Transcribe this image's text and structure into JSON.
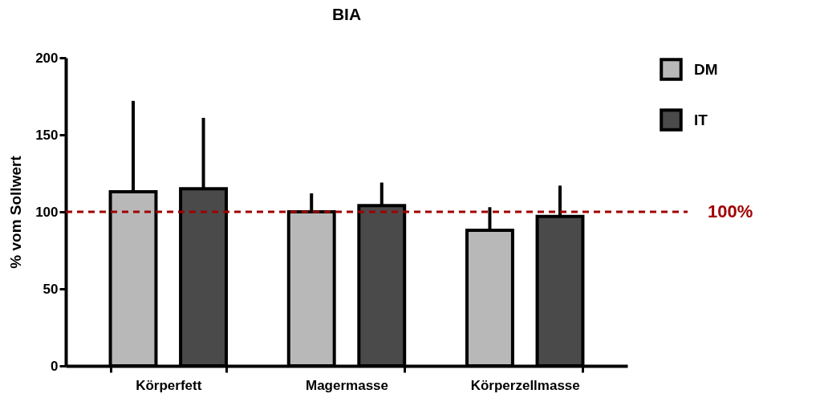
{
  "chart_data": {
    "type": "bar",
    "title": "BIA",
    "ylabel": "% vom Sollwert",
    "categories": [
      "Körperfett",
      "Magermasse",
      "Körperzellmasse"
    ],
    "series": [
      {
        "name": "DM",
        "color": "#b8b8b8",
        "values": [
          113,
          100,
          88
        ],
        "errors": [
          [
            113,
            172
          ],
          [
            100,
            112
          ],
          [
            88,
            103
          ]
        ]
      },
      {
        "name": "IT",
        "color": "#4a4a4a",
        "values": [
          115,
          104,
          97
        ],
        "errors": [
          [
            115,
            161
          ],
          [
            104,
            119
          ],
          [
            97,
            117
          ]
        ]
      }
    ],
    "ylim": [
      0,
      200
    ],
    "yticks": [
      0,
      50,
      100,
      150,
      200
    ],
    "grid": false,
    "legend": "top right",
    "ref_lines": [
      {
        "axis": "y",
        "value": 100,
        "label": "100%",
        "color": "#a00000",
        "line_style": "dashed"
      }
    ]
  }
}
